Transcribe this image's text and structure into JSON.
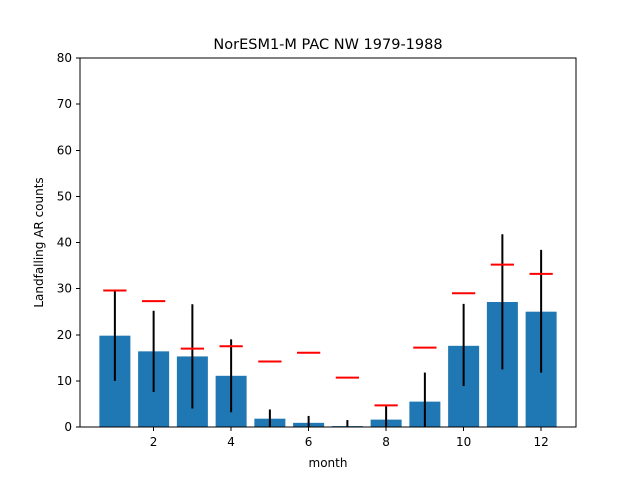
{
  "chart_data": {
    "type": "bar",
    "title": "NorESM1-M PAC NW 1979-1988",
    "xlabel": "month",
    "ylabel": "Landfalling AR counts",
    "x": [
      1,
      2,
      3,
      4,
      5,
      6,
      7,
      8,
      9,
      10,
      11,
      12
    ],
    "values": [
      19.8,
      16.4,
      15.3,
      11.1,
      1.8,
      0.9,
      0.2,
      1.6,
      5.5,
      17.6,
      27.1,
      25.0
    ],
    "error_low": [
      10.0,
      7.6,
      4.0,
      3.2,
      0.0,
      0.0,
      0.0,
      0.0,
      0.0,
      8.9,
      12.5,
      11.8
    ],
    "error_high": [
      29.6,
      25.2,
      26.6,
      19.0,
      3.8,
      2.4,
      1.5,
      4.5,
      11.8,
      26.7,
      41.8,
      38.4
    ],
    "reference_values": [
      29.6,
      27.3,
      17.0,
      17.5,
      14.2,
      16.1,
      10.7,
      4.7,
      17.2,
      29.0,
      35.2,
      33.2
    ],
    "xlim": [
      0.1,
      12.9
    ],
    "ylim": [
      0,
      80
    ],
    "xticks": [
      2,
      4,
      6,
      8,
      10,
      12
    ],
    "yticks": [
      0,
      10,
      20,
      30,
      40,
      50,
      60,
      70,
      80
    ],
    "grid": false,
    "colors": {
      "bar": "#1f77b4",
      "error_bar": "#000000",
      "reference_marker": "#ff0000"
    }
  }
}
